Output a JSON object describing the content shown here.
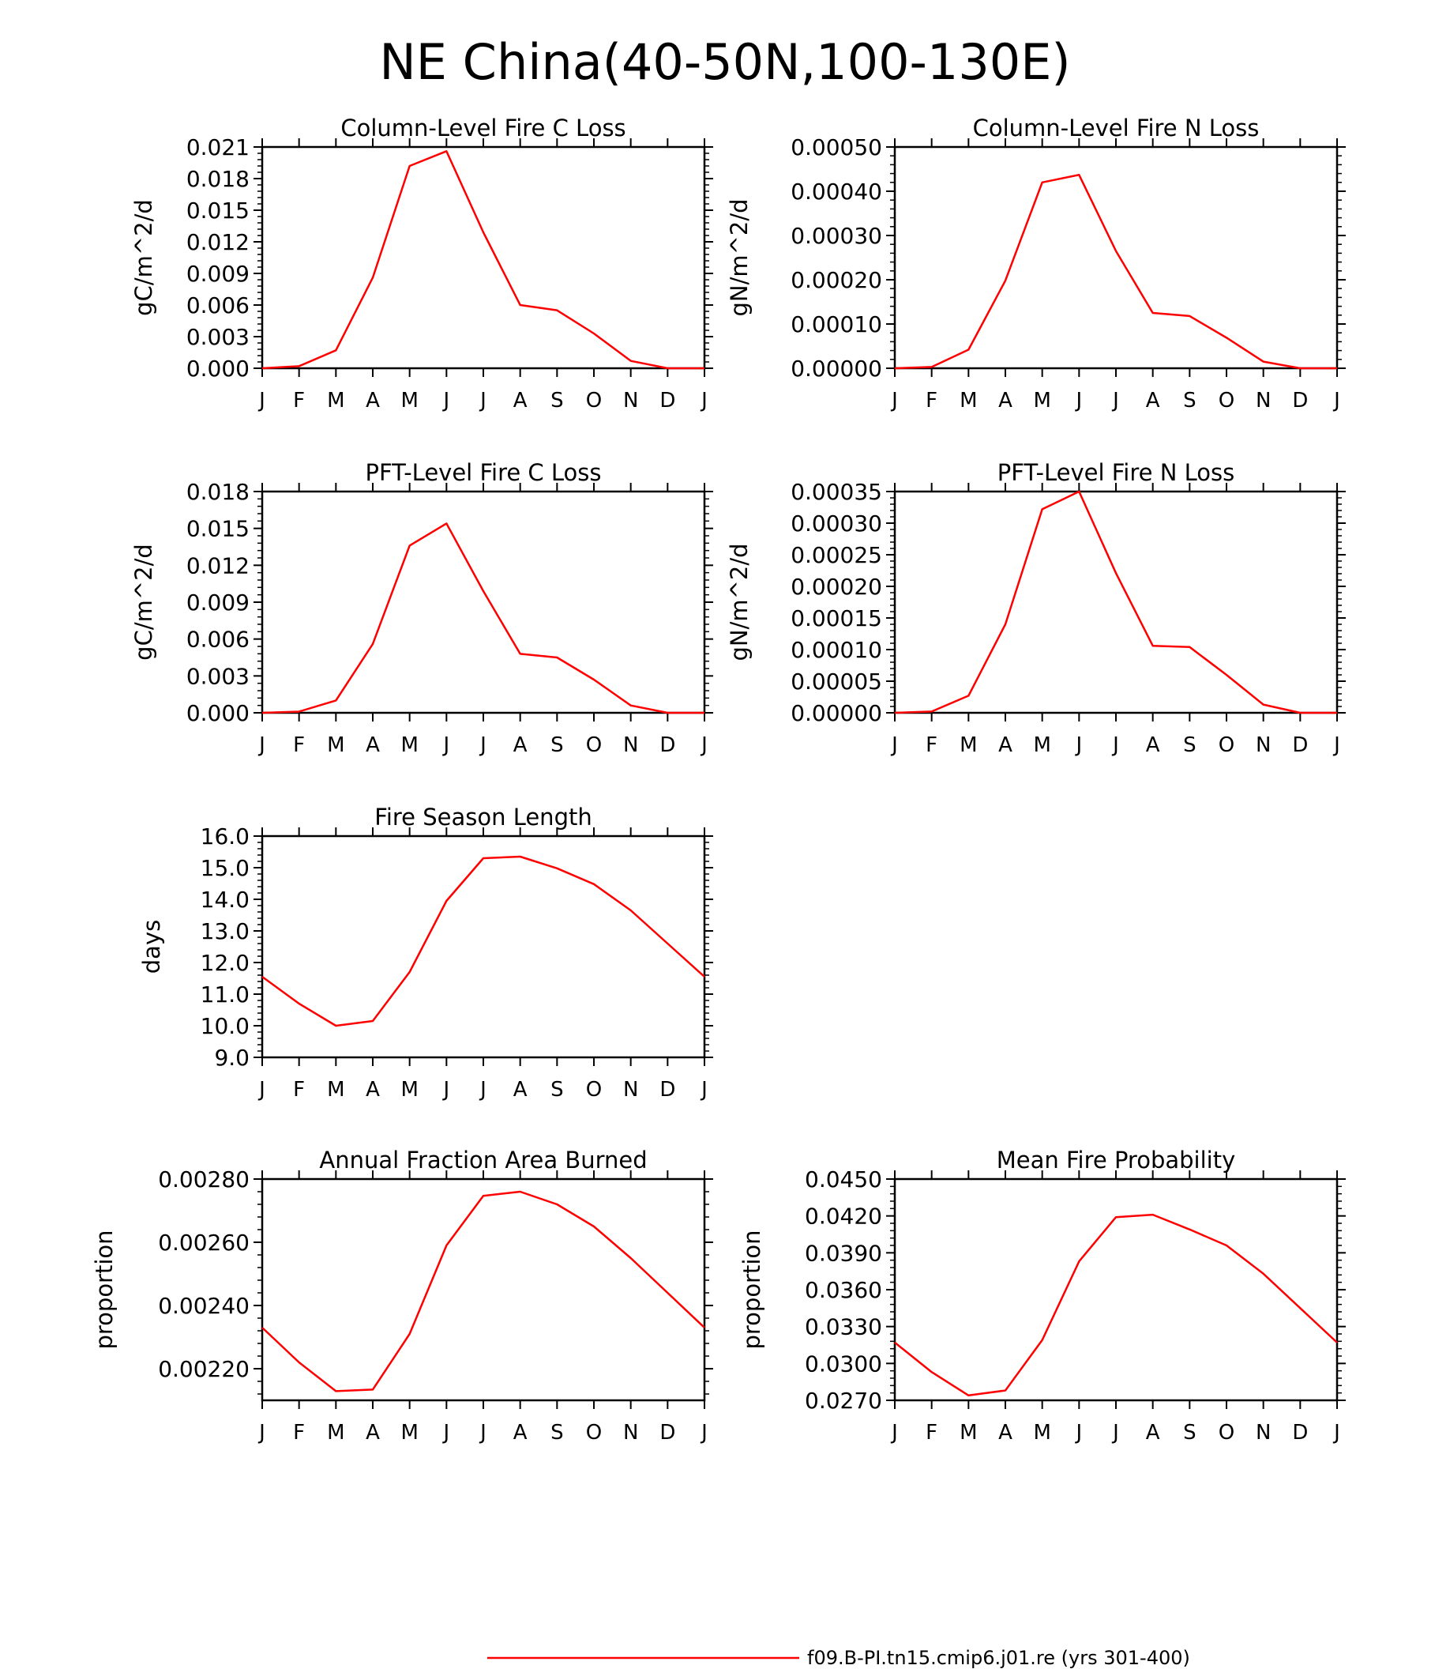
{
  "figure": {
    "title": "NE China(40-50N,100-130E)",
    "line_color": "#ff0000",
    "legend": {
      "label": "f09.B-PI.tn15.cmip6.j01.re (yrs 301-400)",
      "placement": "bottom"
    }
  },
  "chart_data": [
    {
      "type": "line",
      "title": "Column-Level Fire C Loss",
      "ylabel": "gC/m^2/d",
      "categories": [
        "J",
        "F",
        "M",
        "A",
        "M",
        "J",
        "J",
        "A",
        "S",
        "O",
        "N",
        "D",
        "J"
      ],
      "ylim": [
        0,
        0.021
      ],
      "yticks": [
        0,
        0.003,
        0.006,
        0.009,
        0.012,
        0.015,
        0.018,
        0.021
      ],
      "ytick_labels": [
        "0.000",
        "0.003",
        "0.006",
        "0.009",
        "0.012",
        "0.015",
        "0.018",
        "0.021"
      ],
      "series": [
        {
          "values": [
            0.0,
            0.0002,
            0.0017,
            0.0086,
            0.0192,
            0.0206,
            0.0129,
            0.006,
            0.0055,
            0.0033,
            0.0007,
            0.0,
            0.0
          ]
        }
      ]
    },
    {
      "type": "line",
      "title": "Column-Level Fire N Loss",
      "ylabel": "gN/m^2/d",
      "categories": [
        "J",
        "F",
        "M",
        "A",
        "M",
        "J",
        "J",
        "A",
        "S",
        "O",
        "N",
        "D",
        "J"
      ],
      "ylim": [
        0,
        0.0005
      ],
      "yticks": [
        0,
        0.0001,
        0.0002,
        0.0003,
        0.0004,
        0.0005
      ],
      "ytick_labels": [
        "0.00000",
        "0.00010",
        "0.00020",
        "0.00030",
        "0.00040",
        "0.00050"
      ],
      "series": [
        {
          "values": [
            0.0,
            3e-06,
            4.2e-05,
            0.000198,
            0.00042,
            0.000437,
            0.000265,
            0.000125,
            0.000118,
            6.9e-05,
            1.5e-05,
            0.0,
            0.0
          ]
        }
      ]
    },
    {
      "type": "line",
      "title": "PFT-Level Fire C Loss",
      "ylabel": "gC/m^2/d",
      "categories": [
        "J",
        "F",
        "M",
        "A",
        "M",
        "J",
        "J",
        "A",
        "S",
        "O",
        "N",
        "D",
        "J"
      ],
      "ylim": [
        0,
        0.018
      ],
      "yticks": [
        0,
        0.003,
        0.006,
        0.009,
        0.012,
        0.015,
        0.018
      ],
      "ytick_labels": [
        "0.000",
        "0.003",
        "0.006",
        "0.009",
        "0.012",
        "0.015",
        "0.018"
      ],
      "series": [
        {
          "values": [
            0.0,
            0.0001,
            0.001,
            0.0056,
            0.0136,
            0.0154,
            0.0099,
            0.0048,
            0.0045,
            0.0027,
            0.0006,
            0.0,
            0.0
          ]
        }
      ]
    },
    {
      "type": "line",
      "title": "PFT-Level Fire N Loss",
      "ylabel": "gN/m^2/d",
      "categories": [
        "J",
        "F",
        "M",
        "A",
        "M",
        "J",
        "J",
        "A",
        "S",
        "O",
        "N",
        "D",
        "J"
      ],
      "ylim": [
        0,
        0.00035
      ],
      "yticks": [
        0,
        5e-05,
        0.0001,
        0.00015,
        0.0002,
        0.00025,
        0.0003,
        0.00035
      ],
      "ytick_labels": [
        "0.00000",
        "0.00005",
        "0.00010",
        "0.00015",
        "0.00020",
        "0.00025",
        "0.00030",
        "0.00035"
      ],
      "series": [
        {
          "values": [
            0.0,
            2e-06,
            2.7e-05,
            0.00014,
            0.000322,
            0.00035,
            0.000221,
            0.000106,
            0.000104,
            6e-05,
            1.3e-05,
            0.0,
            0.0
          ]
        }
      ]
    },
    {
      "type": "line",
      "title": "Fire Season Length",
      "ylabel": "days",
      "categories": [
        "J",
        "F",
        "M",
        "A",
        "M",
        "J",
        "J",
        "A",
        "S",
        "O",
        "N",
        "D",
        "J"
      ],
      "ylim": [
        9,
        16
      ],
      "yticks": [
        9,
        10,
        11,
        12,
        13,
        14,
        15,
        16
      ],
      "ytick_labels": [
        "9.0",
        "10.0",
        "11.0",
        "12.0",
        "13.0",
        "14.0",
        "15.0",
        "16.0"
      ],
      "series": [
        {
          "values": [
            11.55,
            10.7,
            10.0,
            10.15,
            11.7,
            13.95,
            15.3,
            15.35,
            14.98,
            14.48,
            13.65,
            12.6,
            11.55
          ]
        }
      ]
    },
    {
      "type": "line",
      "title": "Annual Fraction Area Burned",
      "ylabel": "proportion",
      "categories": [
        "J",
        "F",
        "M",
        "A",
        "M",
        "J",
        "J",
        "A",
        "S",
        "O",
        "N",
        "D",
        "J"
      ],
      "ylim": [
        0.0021,
        0.0028
      ],
      "yticks": [
        0.0022,
        0.0024,
        0.0026,
        0.0028
      ],
      "ytick_labels": [
        "0.00220",
        "0.00240",
        "0.00260",
        "0.00280"
      ],
      "series": [
        {
          "values": [
            0.00233,
            0.00222,
            0.002129,
            0.002134,
            0.00231,
            0.00259,
            0.002747,
            0.00276,
            0.00272,
            0.00265,
            0.00255,
            0.00244,
            0.00233
          ]
        }
      ]
    },
    {
      "type": "line",
      "title": "Mean Fire Probability",
      "ylabel": "proportion",
      "categories": [
        "J",
        "F",
        "M",
        "A",
        "M",
        "J",
        "J",
        "A",
        "S",
        "O",
        "N",
        "D",
        "J"
      ],
      "ylim": [
        0.027,
        0.045
      ],
      "yticks": [
        0.027,
        0.03,
        0.033,
        0.036,
        0.039,
        0.042,
        0.045
      ],
      "ytick_labels": [
        "0.0270",
        "0.0300",
        "0.0330",
        "0.0360",
        "0.0390",
        "0.0420",
        "0.0450"
      ],
      "series": [
        {
          "values": [
            0.0317,
            0.0293,
            0.0274,
            0.0278,
            0.0319,
            0.0383,
            0.0419,
            0.0421,
            0.0409,
            0.0396,
            0.0373,
            0.0345,
            0.0317
          ]
        }
      ]
    }
  ]
}
